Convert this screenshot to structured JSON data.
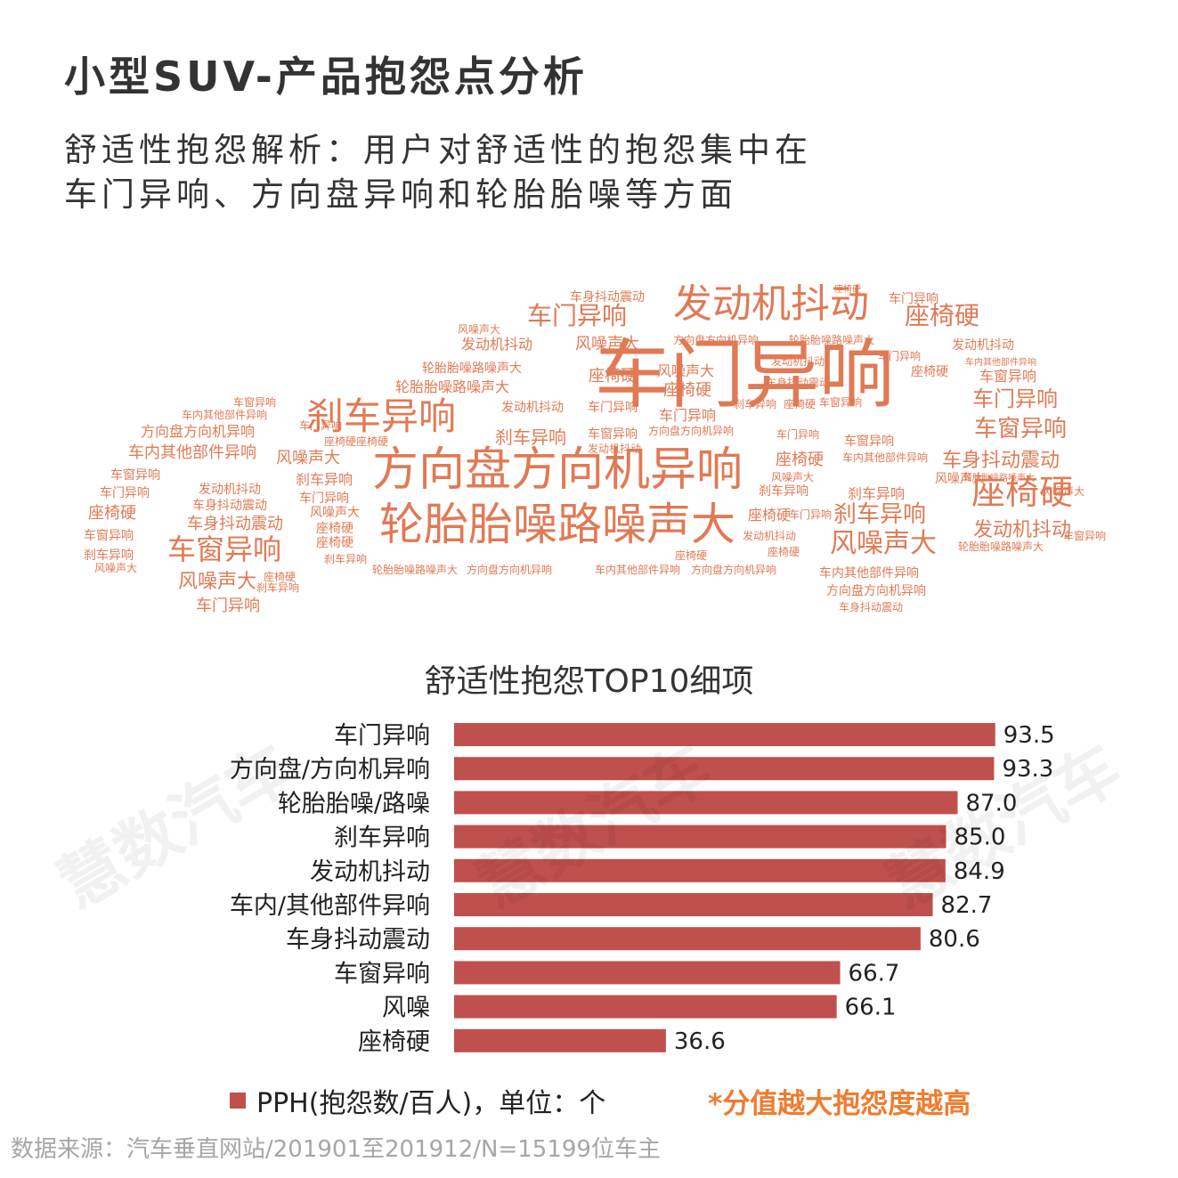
{
  "title": "小型SUV-产品抱怨点分析",
  "subtitle_lines": [
    "舒适性抱怨解析：用户对舒适性的抱怨集中在",
    "车门异响、方向盘异响和轮胎胎噪等方面"
  ],
  "word_cloud": {
    "color": "#e07a55",
    "words": [
      {
        "text": "车门异响",
        "size": 84,
        "x": 836,
        "y": 450
      },
      {
        "text": "方向盘方向机异响",
        "size": 52,
        "x": 626,
        "y": 545
      },
      {
        "text": "轮胎胎噪路噪声大",
        "size": 50,
        "x": 626,
        "y": 606
      },
      {
        "text": "发动机抖动",
        "size": 44,
        "x": 866,
        "y": 356
      },
      {
        "text": "刹车异响",
        "size": 42,
        "x": 428,
        "y": 482
      },
      {
        "text": "座椅硬",
        "size": 38,
        "x": 1148,
        "y": 566
      },
      {
        "text": "车窗异响",
        "size": 32,
        "x": 252,
        "y": 628
      },
      {
        "text": "风噪声大",
        "size": 30,
        "x": 992,
        "y": 620
      },
      {
        "text": "座椅硬",
        "size": 28,
        "x": 1058,
        "y": 364
      },
      {
        "text": "车门异响",
        "size": 28,
        "x": 648,
        "y": 364
      },
      {
        "text": "刹车异响",
        "size": 26,
        "x": 988,
        "y": 586
      },
      {
        "text": "车窗异响",
        "size": 26,
        "x": 1146,
        "y": 490
      },
      {
        "text": "车门异响",
        "size": 24,
        "x": 1140,
        "y": 456
      },
      {
        "text": "车身抖动震动",
        "size": 22,
        "x": 1124,
        "y": 524
      },
      {
        "text": "发动机抖动",
        "size": 22,
        "x": 1148,
        "y": 602
      },
      {
        "text": "风噪声大",
        "size": 22,
        "x": 244,
        "y": 660
      },
      {
        "text": "车身抖动震动",
        "size": 18,
        "x": 264,
        "y": 594
      },
      {
        "text": "刹车异响",
        "size": 20,
        "x": 596,
        "y": 498
      },
      {
        "text": "风噪声大",
        "size": 18,
        "x": 682,
        "y": 392
      },
      {
        "text": "风噪声大",
        "size": 18,
        "x": 346,
        "y": 520
      },
      {
        "text": "座椅硬",
        "size": 18,
        "x": 898,
        "y": 522
      },
      {
        "text": "座椅硬",
        "size": 18,
        "x": 688,
        "y": 428
      },
      {
        "text": "座椅硬",
        "size": 18,
        "x": 772,
        "y": 444
      },
      {
        "text": "车窗异响",
        "size": 16,
        "x": 1132,
        "y": 428
      },
      {
        "text": "车门异响",
        "size": 16,
        "x": 772,
        "y": 472
      },
      {
        "text": "车门异响",
        "size": 18,
        "x": 256,
        "y": 686
      },
      {
        "text": "车内其他部件异响",
        "size": 18,
        "x": 216,
        "y": 514
      },
      {
        "text": "方向盘方向机异响",
        "size": 16,
        "x": 222,
        "y": 490
      },
      {
        "text": "轮胎胎噪路噪声大",
        "size": 16,
        "x": 508,
        "y": 440
      },
      {
        "text": "轮胎胎噪路噪声大",
        "size": 14,
        "x": 530,
        "y": 418
      },
      {
        "text": "发动机抖动",
        "size": 16,
        "x": 558,
        "y": 392
      },
      {
        "text": "发动机抖动",
        "size": 14,
        "x": 598,
        "y": 462
      },
      {
        "text": "车身抖动震动",
        "size": 14,
        "x": 682,
        "y": 338
      },
      {
        "text": "车门异响",
        "size": 14,
        "x": 688,
        "y": 462
      },
      {
        "text": "车窗异响",
        "size": 14,
        "x": 688,
        "y": 492
      },
      {
        "text": "风噪声大",
        "size": 16,
        "x": 770,
        "y": 422
      },
      {
        "text": "刹车异响",
        "size": 16,
        "x": 364,
        "y": 544
      },
      {
        "text": "车内其他部件异响",
        "size": 14,
        "x": 976,
        "y": 648
      },
      {
        "text": "方向盘方向机异响",
        "size": 14,
        "x": 984,
        "y": 668
      },
      {
        "text": "车身抖动震动",
        "size": 12,
        "x": 978,
        "y": 686
      },
      {
        "text": "刹车异响",
        "size": 16,
        "x": 984,
        "y": 560
      },
      {
        "text": "车窗异响",
        "size": 14,
        "x": 976,
        "y": 500
      },
      {
        "text": "风噪声大",
        "size": 14,
        "x": 1078,
        "y": 542
      },
      {
        "text": "车门异响",
        "size": 14,
        "x": 1026,
        "y": 340
      },
      {
        "text": "发动机抖动",
        "size": 14,
        "x": 1104,
        "y": 392
      },
      {
        "text": "车内其他部件异响",
        "size": 10,
        "x": 1124,
        "y": 410
      },
      {
        "text": "座椅硬",
        "size": 14,
        "x": 1044,
        "y": 422
      },
      {
        "text": "座椅硬",
        "size": 18,
        "x": 126,
        "y": 582
      },
      {
        "text": "车窗异响",
        "size": 14,
        "x": 122,
        "y": 606
      },
      {
        "text": "刹车异响",
        "size": 14,
        "x": 122,
        "y": 628
      },
      {
        "text": "车门异响",
        "size": 14,
        "x": 140,
        "y": 558
      },
      {
        "text": "车窗异响",
        "size": 14,
        "x": 152,
        "y": 538
      },
      {
        "text": "发动机抖动",
        "size": 14,
        "x": 258,
        "y": 554
      },
      {
        "text": "车身抖动震动",
        "size": 14,
        "x": 258,
        "y": 572
      },
      {
        "text": "车内其他部件异响",
        "size": 12,
        "x": 252,
        "y": 470
      },
      {
        "text": "轮胎胎噪路噪声大",
        "size": 12,
        "x": 466,
        "y": 644
      },
      {
        "text": "方向盘方向机异响",
        "size": 12,
        "x": 572,
        "y": 644
      },
      {
        "text": "车内其他部件异响",
        "size": 12,
        "x": 716,
        "y": 644
      },
      {
        "text": "方向盘方向机异响",
        "size": 12,
        "x": 824,
        "y": 644
      },
      {
        "text": "车门异响",
        "size": 14,
        "x": 364,
        "y": 564
      },
      {
        "text": "风噪声大",
        "size": 14,
        "x": 376,
        "y": 580
      },
      {
        "text": "座椅硬",
        "size": 14,
        "x": 376,
        "y": 598
      },
      {
        "text": "座椅硬",
        "size": 14,
        "x": 376,
        "y": 614
      },
      {
        "text": "刹车异响",
        "size": 12,
        "x": 388,
        "y": 632
      },
      {
        "text": "座椅硬",
        "size": 16,
        "x": 864,
        "y": 584
      },
      {
        "text": "发动机抖动",
        "size": 12,
        "x": 864,
        "y": 606
      },
      {
        "text": "座椅硬",
        "size": 12,
        "x": 880,
        "y": 624
      },
      {
        "text": "车门异响",
        "size": 12,
        "x": 896,
        "y": 492
      },
      {
        "text": "车窗异响",
        "size": 12,
        "x": 944,
        "y": 456
      },
      {
        "text": "刹车异响",
        "size": 12,
        "x": 848,
        "y": 458
      },
      {
        "text": "座椅硬",
        "size": 12,
        "x": 898,
        "y": 458
      },
      {
        "text": "车身抖动震动",
        "size": 12,
        "x": 896,
        "y": 434
      },
      {
        "text": "发动机抖动",
        "size": 12,
        "x": 896,
        "y": 410
      },
      {
        "text": "方向盘方向机异响",
        "size": 12,
        "x": 804,
        "y": 386
      },
      {
        "text": "轮胎胎噪路噪声大",
        "size": 12,
        "x": 934,
        "y": 386
      },
      {
        "text": "风噪声大",
        "size": 12,
        "x": 890,
        "y": 540
      },
      {
        "text": "方向盘方向机异响",
        "size": 12,
        "x": 776,
        "y": 488
      },
      {
        "text": "刹车异响",
        "size": 14,
        "x": 880,
        "y": 556
      },
      {
        "text": "发动机抖动",
        "size": 12,
        "x": 690,
        "y": 508
      },
      {
        "text": "车门异响",
        "size": 12,
        "x": 360,
        "y": 482
      },
      {
        "text": "座椅硬",
        "size": 12,
        "x": 382,
        "y": 500
      },
      {
        "text": "座椅硬",
        "size": 12,
        "x": 418,
        "y": 500
      },
      {
        "text": "车门异响",
        "size": 12,
        "x": 1010,
        "y": 404
      },
      {
        "text": "车内其他部件异响",
        "size": 12,
        "x": 994,
        "y": 518
      },
      {
        "text": "轮胎胎噪路噪声大",
        "size": 12,
        "x": 1124,
        "y": 618
      },
      {
        "text": "风噪声大",
        "size": 12,
        "x": 538,
        "y": 374
      },
      {
        "text": "风噪声大",
        "size": 12,
        "x": 130,
        "y": 642
      },
      {
        "text": "车窗异响",
        "size": 12,
        "x": 286,
        "y": 456
      },
      {
        "text": "座椅硬",
        "size": 12,
        "x": 314,
        "y": 652
      },
      {
        "text": "刹车异响",
        "size": 12,
        "x": 312,
        "y": 664
      },
      {
        "text": "轮胎胎噪路噪声大",
        "size": 10,
        "x": 1122,
        "y": 540
      },
      {
        "text": "风噪声大",
        "size": 12,
        "x": 1194,
        "y": 556
      },
      {
        "text": "车门异响",
        "size": 12,
        "x": 910,
        "y": 582
      },
      {
        "text": "座椅硬",
        "size": 12,
        "x": 776,
        "y": 628
      },
      {
        "text": "车窗异响",
        "size": 12,
        "x": 1218,
        "y": 606
      },
      {
        "text": "座椅硬",
        "size": 10,
        "x": 952,
        "y": 328
      }
    ]
  },
  "chart_data": {
    "type": "bar",
    "orientation": "horizontal",
    "title": "舒适性抱怨TOP10细项",
    "categories": [
      "车门异响",
      "方向盘/方向机异响",
      "轮胎胎噪/路噪",
      "刹车异响",
      "发动机抖动",
      "车内/其他部件异响",
      "车身抖动震动",
      "车窗异响",
      "风噪",
      "座椅硬"
    ],
    "series": [
      {
        "name": "PPH(抱怨数/百人)，单位：个",
        "values": [
          93.5,
          93.3,
          87.0,
          85.0,
          84.9,
          82.7,
          80.6,
          66.7,
          66.1,
          36.6
        ]
      }
    ],
    "xlim": [
      0,
      100
    ],
    "grid": false,
    "legend": "bottom-left",
    "bar_color": "#c0504d"
  },
  "watermark": "慧数汽车",
  "note": "*分值越大抱怨度越高",
  "source": "数据来源：汽车垂直网站/201901至201912/N=15199位车主"
}
